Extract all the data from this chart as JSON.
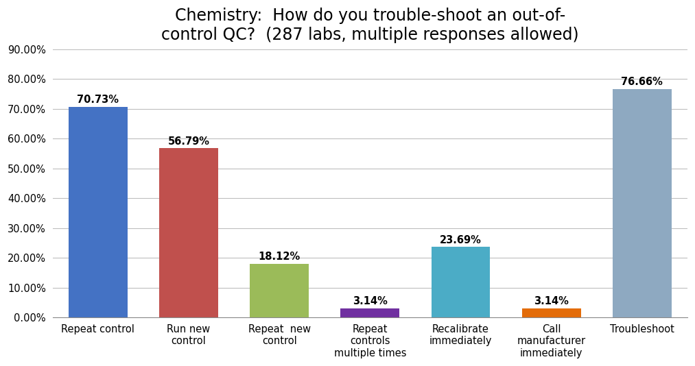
{
  "title": "Chemistry:  How do you trouble-shoot an out-of-\ncontrol QC?  (287 labs, multiple responses allowed)",
  "categories": [
    "Repeat control",
    "Run new\ncontrol",
    "Repeat  new\ncontrol",
    "Repeat\ncontrols\nmultiple times",
    "Recalibrate\nimmediately",
    "Call\nmanufacturer\nimmediately",
    "Troubleshoot"
  ],
  "values": [
    70.73,
    56.79,
    18.12,
    3.14,
    23.69,
    3.14,
    76.66
  ],
  "bar_colors": [
    "#4472C4",
    "#C0504D",
    "#9BBB59",
    "#7030A0",
    "#4BACC6",
    "#E36C09",
    "#8EA9C1"
  ],
  "ylim": [
    0,
    90
  ],
  "yticks": [
    0,
    10,
    20,
    30,
    40,
    50,
    60,
    70,
    80,
    90
  ],
  "ytick_labels": [
    "0.00%",
    "10.00%",
    "20.00%",
    "30.00%",
    "40.00%",
    "50.00%",
    "60.00%",
    "70.00%",
    "80.00%",
    "90.00%"
  ],
  "value_labels": [
    "70.73%",
    "56.79%",
    "18.12%",
    "3.14%",
    "23.69%",
    "3.14%",
    "76.66%"
  ],
  "title_fontsize": 17,
  "label_fontsize": 10.5,
  "tick_fontsize": 10.5,
  "annot_fontsize": 10.5,
  "background_color": "#FFFFFF",
  "grid_color": "#BEBEBE",
  "bar_width": 0.65
}
